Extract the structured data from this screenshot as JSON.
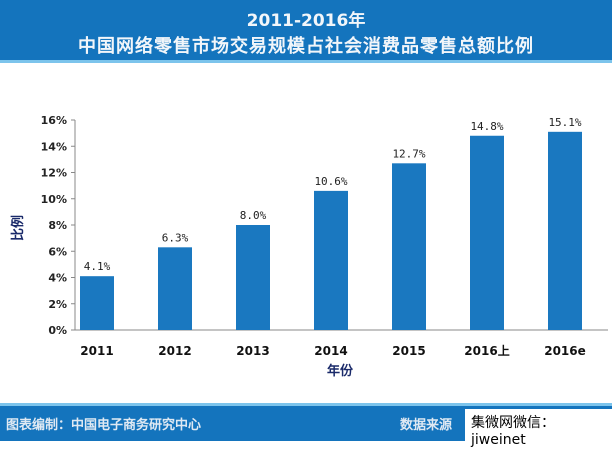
{
  "header": {
    "line1": "2011-2016年",
    "line2": "中国网络零售市场交易规模占社会消费品零售总额比例"
  },
  "footer": {
    "compiled_by": "图表编制：中国电子商务研究中心",
    "source_label": "数据来源",
    "watermark": "集微网微信：jiweinet"
  },
  "chart_data": {
    "type": "bar",
    "title": "2011-2016年中国网络零售市场交易规模占社会消费品零售总额比例",
    "categories": [
      "2011",
      "2012",
      "2013",
      "2014",
      "2015",
      "2016上",
      "2016e"
    ],
    "values": [
      4.1,
      6.3,
      8.0,
      10.6,
      12.7,
      14.8,
      15.1
    ],
    "labels": [
      "4.1%",
      "6.3%",
      "8.0%",
      "10.6%",
      "12.7%",
      "14.8%",
      "15.1%"
    ],
    "xlabel": "年份",
    "ylabel": "比例",
    "ylim": [
      0,
      16
    ],
    "yticks": [
      "0%",
      "2%",
      "4%",
      "6%",
      "8%",
      "10%",
      "12%",
      "14%",
      "16%"
    ],
    "bar_color": "#1a78c0",
    "grid": false
  }
}
